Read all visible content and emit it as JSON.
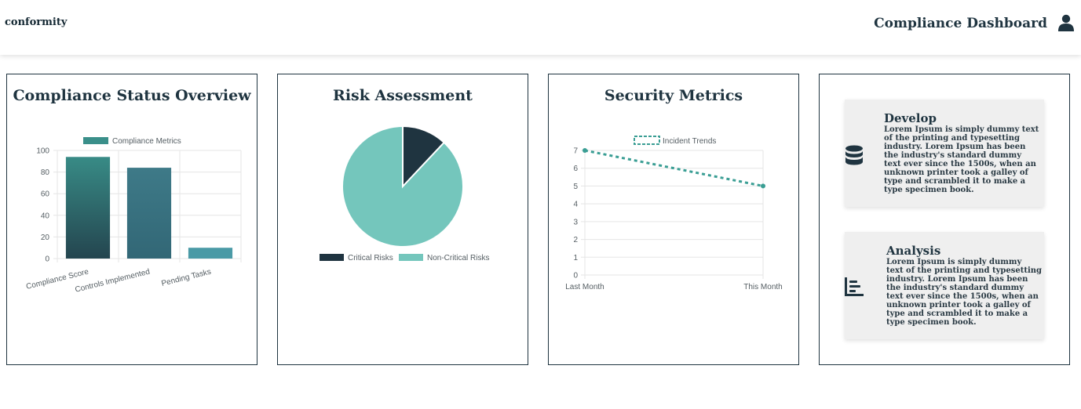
{
  "header": {
    "logo": "conformity",
    "title": "Compliance Dashboard",
    "user_icon": "user-icon"
  },
  "colors": {
    "primary": "#1f3440",
    "teal": "#3a8f8a",
    "teal_light": "#74c6bc",
    "bar_blue": "#3e7a88",
    "feature_bg": "#efefef"
  },
  "cards": {
    "compliance": {
      "title": "Compliance Status Overview"
    },
    "risk": {
      "title": "Risk Assessment"
    },
    "security": {
      "title": "Security Metrics"
    }
  },
  "chart_data": [
    {
      "type": "bar",
      "title": "Compliance Status Overview",
      "categories": [
        "Compliance Score",
        "Controls Implemented",
        "Pending Tasks"
      ],
      "series": [
        {
          "name": "Compliance Metrics",
          "values": [
            94,
            84,
            10
          ]
        }
      ],
      "ylim": [
        0,
        100
      ],
      "yticks": [
        "0",
        "20",
        "40",
        "60",
        "80",
        "100"
      ],
      "grid": true,
      "legend_position": "top"
    },
    {
      "type": "pie",
      "title": "Risk Assessment",
      "categories": [
        "Critical Risks",
        "Non-Critical Risks"
      ],
      "values": [
        12,
        88
      ],
      "legend_position": "bottom"
    },
    {
      "type": "line",
      "title": "Security Metrics",
      "x": [
        "Last Month",
        "This Month"
      ],
      "series": [
        {
          "name": "Incident Trends",
          "values": [
            7,
            5
          ]
        }
      ],
      "ylim": [
        0,
        7
      ],
      "yticks": [
        "0",
        "1",
        "2",
        "3",
        "4",
        "5",
        "6",
        "7"
      ],
      "grid": true,
      "legend_position": "top"
    }
  ],
  "features": [
    {
      "icon": "database-icon",
      "title": "Develop",
      "lines": [
        "Lorem Ipsum is simply dummy text",
        "of the printing and typesetting",
        "industry. Lorem Ipsum has been",
        "the industry's standard dummy",
        "text ever since the 1500s, when an",
        "unknown printer took a galley of",
        "type and scrambled it to make a",
        "type specimen book."
      ]
    },
    {
      "icon": "bar-chart-icon",
      "title": "Analysis",
      "lines": [
        "Lorem Ipsum is simply dummy",
        "text of the printing and typesetting",
        "industry. Lorem Ipsum has been",
        "the industry's standard dummy",
        "text ever since the 1500s, when an",
        "unknown printer took a galley of",
        "type and scrambled it to make a",
        "type specimen book."
      ]
    }
  ]
}
